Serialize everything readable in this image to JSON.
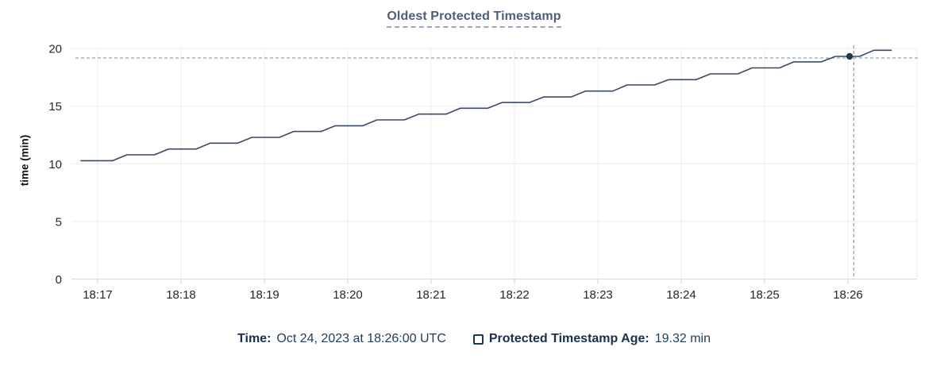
{
  "chart": {
    "title": "Oldest Protected Timestamp",
    "ylabel": "time (min)"
  },
  "legend": {
    "time_label": "Time:",
    "time_value": "Oct 24, 2023 at 18:26:00 UTC",
    "series_label": "Protected Timestamp Age:",
    "series_value": "19.32 min"
  },
  "colors": {
    "line": "#3a4a63",
    "dot": "#24384f",
    "crosshair": "#8ea6b2",
    "grid": "#ececec",
    "axis": "#d9d9d9",
    "tick_mark": "#d0d0d0",
    "tick_text": "#262626",
    "title_text": "#4e5d79",
    "legend_text": "#1b3553"
  },
  "chart_data": {
    "type": "line",
    "title": "Oldest Protected Timestamp",
    "xlabel": "",
    "ylabel": "time (min)",
    "ylim": [
      0,
      20
    ],
    "y_ticks": [
      0,
      5,
      10,
      15,
      20
    ],
    "x_ticks": [
      "18:17",
      "18:18",
      "18:19",
      "18:20",
      "18:21",
      "18:22",
      "18:23",
      "18:24",
      "18:25",
      "18:26"
    ],
    "x_tick_minutes": [
      0,
      1,
      2,
      3,
      4,
      5,
      6,
      7,
      8,
      9
    ],
    "grid": true,
    "legend_position": "bottom",
    "series": [
      {
        "name": "Protected Timestamp Age",
        "unit": "min",
        "points_t_min_after_1817": [
          [
            -0.2,
            10.27
          ],
          [
            0.18,
            10.27
          ],
          [
            0.35,
            10.78
          ],
          [
            0.68,
            10.78
          ],
          [
            0.85,
            11.28
          ],
          [
            1.18,
            11.28
          ],
          [
            1.35,
            11.79
          ],
          [
            1.68,
            11.79
          ],
          [
            1.85,
            12.29
          ],
          [
            2.18,
            12.29
          ],
          [
            2.35,
            12.8
          ],
          [
            2.68,
            12.8
          ],
          [
            2.85,
            13.3
          ],
          [
            3.18,
            13.3
          ],
          [
            3.35,
            13.81
          ],
          [
            3.68,
            13.81
          ],
          [
            3.85,
            14.31
          ],
          [
            4.18,
            14.31
          ],
          [
            4.35,
            14.82
          ],
          [
            4.68,
            14.82
          ],
          [
            4.85,
            15.32
          ],
          [
            5.18,
            15.32
          ],
          [
            5.35,
            15.8
          ],
          [
            5.68,
            15.8
          ],
          [
            5.85,
            16.31
          ],
          [
            6.18,
            16.31
          ],
          [
            6.35,
            16.84
          ],
          [
            6.68,
            16.84
          ],
          [
            6.85,
            17.3
          ],
          [
            7.18,
            17.3
          ],
          [
            7.35,
            17.8
          ],
          [
            7.68,
            17.8
          ],
          [
            7.85,
            18.32
          ],
          [
            8.18,
            18.32
          ],
          [
            8.35,
            18.84
          ],
          [
            8.68,
            18.84
          ],
          [
            8.85,
            19.32
          ],
          [
            9.14,
            19.32
          ],
          [
            9.31,
            19.85
          ],
          [
            9.52,
            19.85
          ]
        ]
      }
    ],
    "highlight_point": {
      "t": 9.02,
      "value": 19.32
    },
    "crosshair": {
      "t": 9.07,
      "value": 19.18
    },
    "hover_readout": {
      "time": "Oct 24, 2023 at 18:26:00 UTC",
      "age_min": 19.32
    }
  }
}
